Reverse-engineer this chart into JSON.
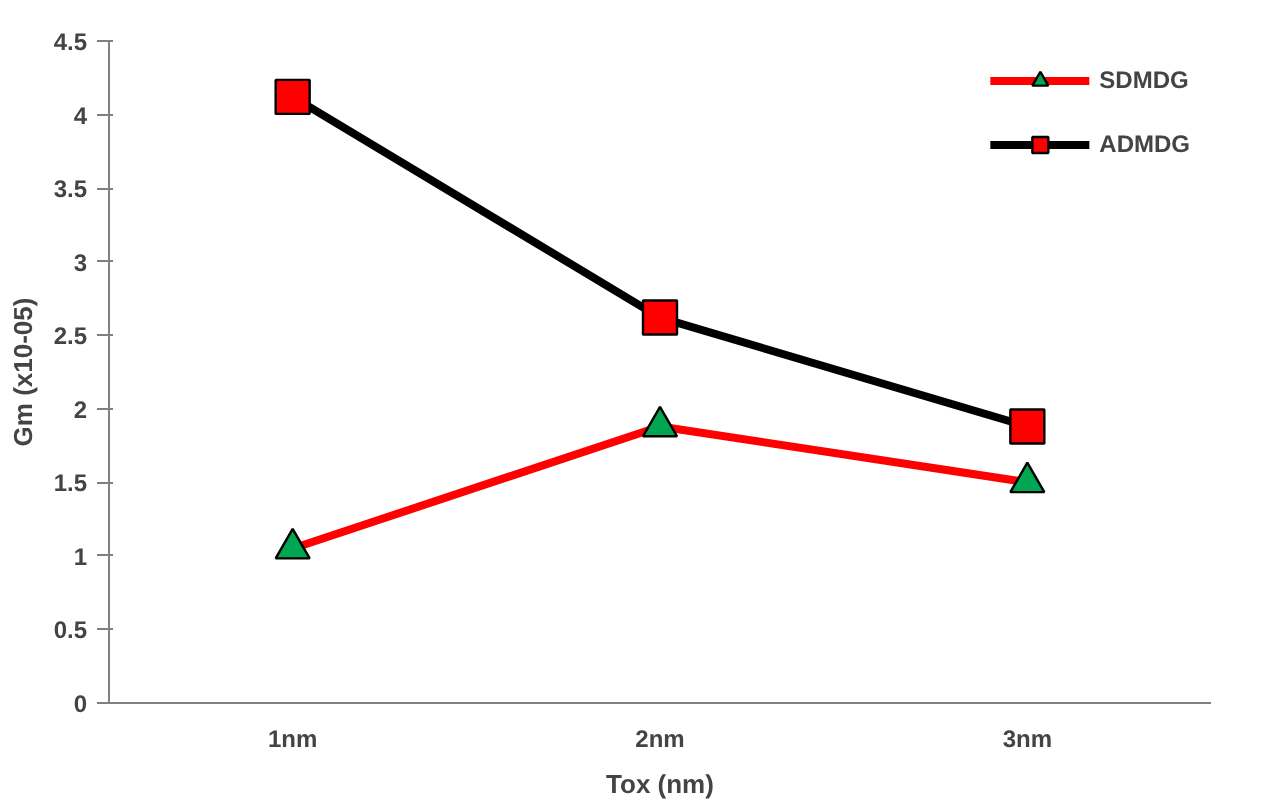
{
  "chart_data": {
    "type": "line",
    "xlabel": "Tox (nm)",
    "ylabel": "Gm (x10-05)",
    "categories": [
      "1nm",
      "2nm",
      "3nm"
    ],
    "series": [
      {
        "name": "SDMDG",
        "color": "#ff0000",
        "marker": "triangle",
        "colors": [
          "#00a651",
          "#00a651",
          "#00a651"
        ],
        "values": [
          1.05,
          1.88,
          1.5
        ]
      },
      {
        "name": "ADMDG",
        "color": "#000000",
        "marker": "square",
        "colors": [
          "#ff0000",
          "#ff0000",
          "#ff0000"
        ],
        "values": [
          4.12,
          2.62,
          1.88
        ]
      }
    ],
    "ylim": [
      0,
      4.5
    ],
    "yticks": [
      0,
      0.5,
      1,
      1.5,
      2,
      2.5,
      3,
      3.5,
      4,
      4.5
    ],
    "grid": false,
    "legend": "top right"
  }
}
